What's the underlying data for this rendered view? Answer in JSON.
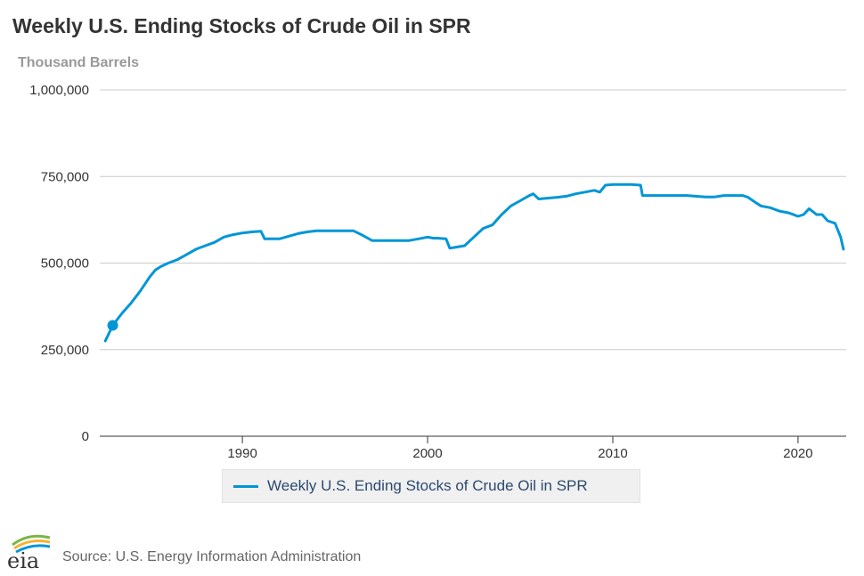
{
  "title": "Weekly U.S. Ending Stocks of Crude Oil in SPR",
  "subtitle": "Thousand Barrels",
  "legend": {
    "label": "Weekly U.S. Ending Stocks of Crude Oil in SPR"
  },
  "source": "Source: U.S. Energy Information Administration",
  "logo": {
    "text": "eia"
  },
  "colors": {
    "series": "#0096d6",
    "grid": "#cccccc",
    "axis": "#333333"
  },
  "chart_data": {
    "type": "line",
    "title": "Weekly U.S. Ending Stocks of Crude Oil in SPR",
    "ylabel": "Thousand Barrels",
    "xlim": [
      1982.3,
      2022.6
    ],
    "ylim": [
      0,
      1000000
    ],
    "yticks": [
      0,
      250000,
      500000,
      750000,
      1000000
    ],
    "ytick_labels": [
      "0",
      "250,000",
      "500,000",
      "750,000",
      "1,000,000"
    ],
    "xticks": [
      1990,
      2000,
      2010,
      2020
    ],
    "xtick_labels": [
      "1990",
      "2000",
      "2010",
      "2020"
    ],
    "grid": "horizontal",
    "legend_position": "bottom-center",
    "highlight_point": {
      "x": 1983.0,
      "y": 320000
    },
    "series": [
      {
        "name": "Weekly U.S. Ending Stocks of Crude Oil in SPR",
        "x": [
          1982.6,
          1983.0,
          1983.5,
          1984.0,
          1984.5,
          1985.0,
          1985.3,
          1985.6,
          1986.0,
          1986.5,
          1987.0,
          1987.5,
          1988.0,
          1988.5,
          1989.0,
          1989.5,
          1990.0,
          1990.5,
          1991.0,
          1991.2,
          1991.6,
          1992.0,
          1993.0,
          1993.5,
          1994.0,
          1994.5,
          1995.0,
          1996.0,
          1996.5,
          1997.0,
          1998.0,
          1999.0,
          1999.5,
          2000.0,
          2000.3,
          2000.5,
          2001.0,
          2001.2,
          2002.0,
          2002.5,
          2003.0,
          2003.5,
          2004.0,
          2004.5,
          2005.0,
          2005.5,
          2005.7,
          2006.0,
          2007.0,
          2007.5,
          2008.0,
          2008.5,
          2009.0,
          2009.3,
          2009.6,
          2010.0,
          2011.0,
          2011.5,
          2011.6,
          2012.0,
          2013.0,
          2014.0,
          2015.0,
          2015.5,
          2016.0,
          2017.0,
          2017.3,
          2017.7,
          2018.0,
          2018.5,
          2019.0,
          2019.5,
          2020.0,
          2020.3,
          2020.6,
          2021.0,
          2021.3,
          2021.6,
          2022.0,
          2022.3,
          2022.45
        ],
        "y": [
          275000,
          320000,
          355000,
          385000,
          420000,
          460000,
          480000,
          490000,
          500000,
          510000,
          525000,
          540000,
          550000,
          560000,
          575000,
          582000,
          587000,
          590000,
          592000,
          570000,
          570000,
          570000,
          585000,
          590000,
          593000,
          593000,
          593000,
          593000,
          580000,
          565000,
          565000,
          565000,
          570000,
          575000,
          572000,
          572000,
          570000,
          543000,
          550000,
          575000,
          600000,
          610000,
          640000,
          665000,
          680000,
          695000,
          700000,
          685000,
          690000,
          693000,
          700000,
          705000,
          710000,
          705000,
          725000,
          727000,
          727000,
          725000,
          695000,
          695000,
          695000,
          695000,
          691000,
          691000,
          695000,
          695000,
          690000,
          675000,
          665000,
          660000,
          650000,
          645000,
          635000,
          640000,
          657000,
          640000,
          640000,
          622000,
          615000,
          575000,
          540000
        ]
      }
    ]
  }
}
